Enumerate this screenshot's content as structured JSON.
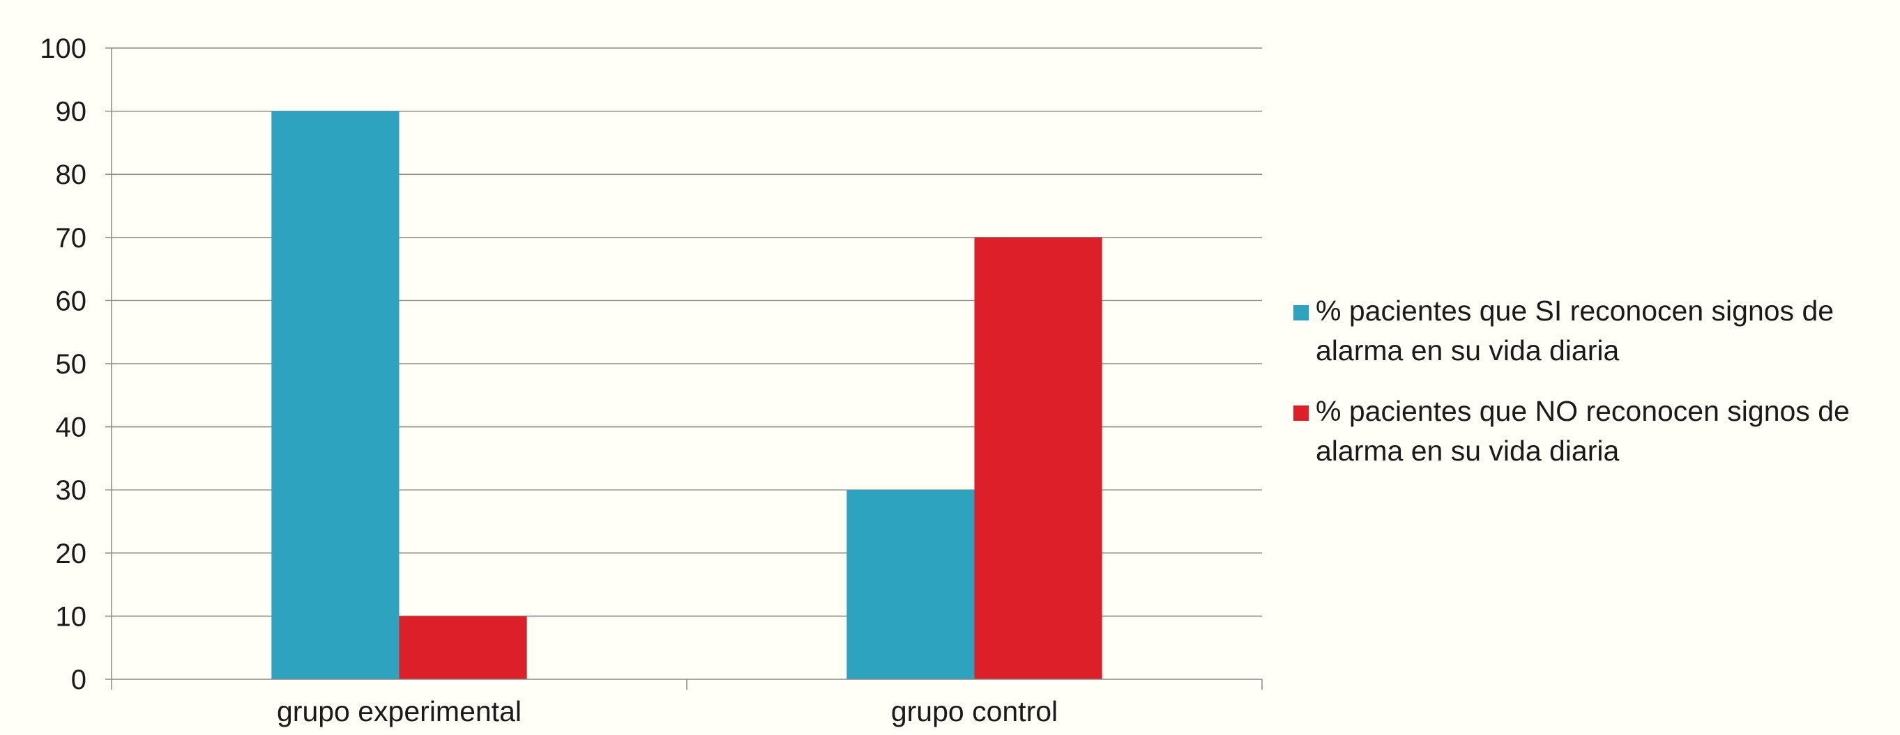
{
  "chart_data": {
    "type": "bar",
    "categories": [
      "grupo experimental",
      "grupo control"
    ],
    "series": [
      {
        "name": "% pacientes que SI reconocen signos de alarma en su vida diaria",
        "values": [
          90,
          30
        ],
        "color": "#2ea3bf"
      },
      {
        "name": "% pacientes que NO reconocen signos de alarma en su vida diaria",
        "values": [
          10,
          70
        ],
        "color": "#dc1f29"
      }
    ],
    "ylim": [
      0,
      100
    ],
    "yticks": [
      0,
      10,
      20,
      30,
      40,
      50,
      60,
      70,
      80,
      90,
      100
    ],
    "grid": true,
    "legend_position": "right",
    "title": "",
    "xlabel": "",
    "ylabel": ""
  }
}
